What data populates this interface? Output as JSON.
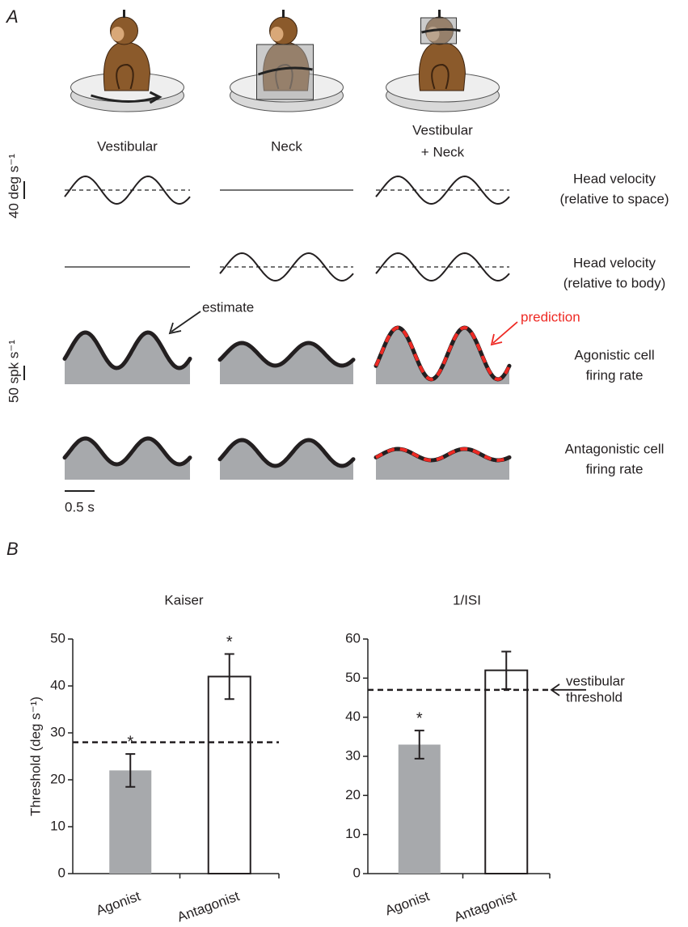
{
  "panel_a": {
    "label": "A",
    "conditions": [
      [
        "Vestibular"
      ],
      [
        "Neck"
      ],
      [
        "Vestibular",
        "+ Neck"
      ]
    ],
    "rows": [
      [
        "Head velocity",
        "(relative to space)"
      ],
      [
        "Head velocity",
        "(relative to body)"
      ],
      [
        "Agonistic cell",
        "firing rate"
      ],
      [
        "Antagonistic cell",
        "firing rate"
      ]
    ],
    "scale_bars": {
      "velocity": "40 deg s⁻¹",
      "rate": "50 spk s⁻¹",
      "time": "0.5 s"
    },
    "annotations": {
      "estimate": "estimate",
      "prediction": "prediction"
    }
  },
  "panel_b": {
    "label": "B"
  },
  "chart_data": [
    {
      "type": "bar",
      "title": "Kaiser",
      "ylabel": "Threshold (deg s⁻¹)",
      "categories": [
        "Agonist",
        "Antagonist"
      ],
      "values": [
        22,
        42
      ],
      "errors": [
        3.5,
        4.8
      ],
      "colors": [
        "#a7a9ac",
        "#ffffff"
      ],
      "significance": [
        "*",
        "*"
      ],
      "reference": 28,
      "ylim": [
        0,
        50
      ],
      "yticks": [
        0,
        10,
        20,
        30,
        40,
        50
      ]
    },
    {
      "type": "bar",
      "title": "1/ISI",
      "categories": [
        "Agonist",
        "Antagonist"
      ],
      "values": [
        33,
        52
      ],
      "errors": [
        3.6,
        4.8
      ],
      "colors": [
        "#a7a9ac",
        "#ffffff"
      ],
      "significance": [
        "*",
        null
      ],
      "reference": 47,
      "reference_label": [
        "vestibular",
        "threshold"
      ],
      "ylim": [
        0,
        60
      ],
      "yticks": [
        0,
        10,
        20,
        30,
        40,
        50,
        60
      ]
    }
  ]
}
